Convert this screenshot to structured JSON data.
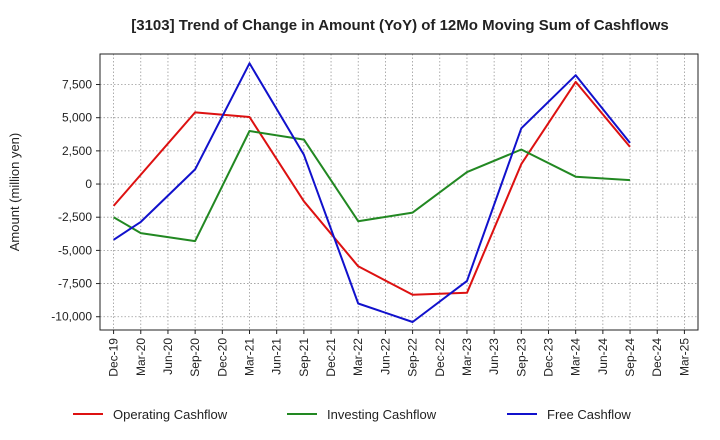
{
  "chart_data": {
    "type": "line",
    "title": "[3103]  Trend of Change in Amount (YoY) of 12Mo Moving Sum of Cashflows",
    "xlabel": "",
    "ylabel": "Amount (million yen)",
    "ylim": [
      -11000,
      9800
    ],
    "yticks": [
      7500,
      5000,
      2500,
      0,
      -2500,
      -5000,
      -7500,
      -10000
    ],
    "ytick_labels": [
      "7,500",
      "5,000",
      "2,500",
      "0",
      "-2,500",
      "-5,000",
      "-7,500",
      "-10,000"
    ],
    "categories": [
      "Dec-19",
      "Mar-20",
      "Jun-20",
      "Sep-20",
      "Dec-20",
      "Mar-21",
      "Jun-21",
      "Sep-21",
      "Dec-21",
      "Mar-22",
      "Jun-22",
      "Sep-22",
      "Dec-22",
      "Mar-23",
      "Jun-23",
      "Sep-23",
      "Dec-23",
      "Mar-24",
      "Jun-24",
      "Sep-24",
      "Dec-24",
      "Mar-25"
    ],
    "grid": true,
    "legend_position": "bottom",
    "series": [
      {
        "name": "Operating Cashflow",
        "color": "#dd1111",
        "points": [
          {
            "x": "Dec-19",
            "y": -1650
          },
          {
            "x": "Sep-20",
            "y": 5400
          },
          {
            "x": "Mar-21",
            "y": 5050
          },
          {
            "x": "Sep-21",
            "y": -1300
          },
          {
            "x": "Mar-22",
            "y": -6200
          },
          {
            "x": "Sep-22",
            "y": -8350
          },
          {
            "x": "Mar-23",
            "y": -8200
          },
          {
            "x": "Sep-23",
            "y": 1500
          },
          {
            "x": "Mar-24",
            "y": 7700
          },
          {
            "x": "Sep-24",
            "y": 2800
          }
        ]
      },
      {
        "name": "Investing Cashflow",
        "color": "#228822",
        "points": [
          {
            "x": "Dec-19",
            "y": -2500
          },
          {
            "x": "Mar-20",
            "y": -3700
          },
          {
            "x": "Sep-20",
            "y": -4300
          },
          {
            "x": "Mar-21",
            "y": 4000
          },
          {
            "x": "Sep-21",
            "y": 3350
          },
          {
            "x": "Mar-22",
            "y": -2800
          },
          {
            "x": "Sep-22",
            "y": -2150
          },
          {
            "x": "Mar-23",
            "y": 900
          },
          {
            "x": "Sep-23",
            "y": 2600
          },
          {
            "x": "Mar-24",
            "y": 550
          },
          {
            "x": "Sep-24",
            "y": 300
          }
        ]
      },
      {
        "name": "Free Cashflow",
        "color": "#1111cc",
        "points": [
          {
            "x": "Dec-19",
            "y": -4200
          },
          {
            "x": "Mar-20",
            "y": -2850
          },
          {
            "x": "Sep-20",
            "y": 1100
          },
          {
            "x": "Mar-21",
            "y": 9100
          },
          {
            "x": "Sep-21",
            "y": 2200
          },
          {
            "x": "Mar-22",
            "y": -9000
          },
          {
            "x": "Sep-22",
            "y": -10400
          },
          {
            "x": "Mar-23",
            "y": -7300
          },
          {
            "x": "Sep-23",
            "y": 4200
          },
          {
            "x": "Mar-24",
            "y": 8200
          },
          {
            "x": "Sep-24",
            "y": 3100
          }
        ]
      }
    ]
  }
}
